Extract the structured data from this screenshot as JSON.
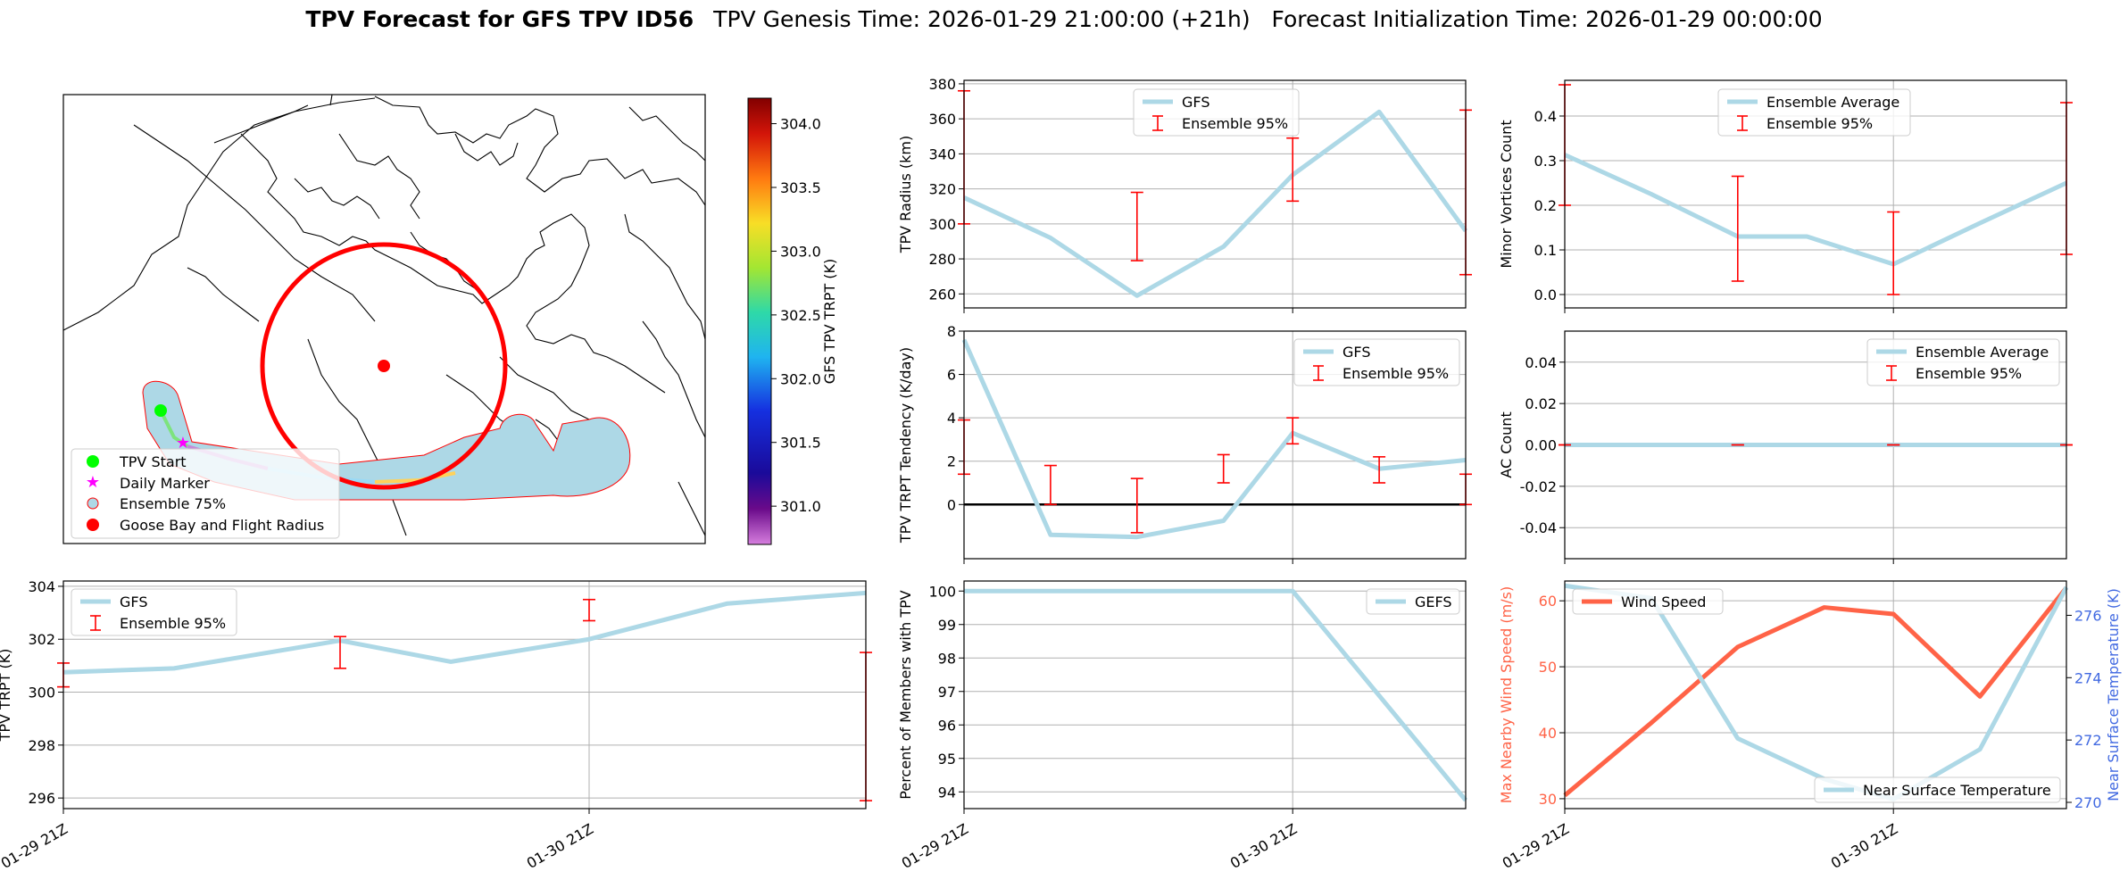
{
  "figure": {
    "title_bold": "TPV Forecast for GFS TPV ID56",
    "title_rest": "TPV Genesis Time: 2026-01-29 21:00:00 (+21h)   Forecast Initialization Time: 2026-01-29 00:00:00"
  },
  "colors": {
    "series": "#add8e6",
    "errorbar": "#ff0000",
    "wind": "#ff6347",
    "temperature_axis": "#4169e1",
    "grid": "#b0b0b0"
  },
  "time_ticks": [
    "01-29 21Z",
    "01-30 21Z"
  ],
  "chart_data": [
    {
      "id": "map",
      "type": "map",
      "colorbar": {
        "label": "GFS TPV TRPT (K)",
        "range": [
          300.7,
          304.2
        ],
        "ticks": [
          "301.0",
          "301.5",
          "302.0",
          "302.5",
          "303.0",
          "303.5",
          "304.0"
        ],
        "colormap": "jet (purple to dark red)"
      },
      "legend": [
        "TPV Start",
        "Daily Marker",
        "Ensemble 75%",
        "Goose Bay and Flight Radius"
      ],
      "legend_position": "lower-left"
    },
    {
      "id": "trpt",
      "type": "line",
      "ylabel": "TPV TRPT (K)",
      "ylim": [
        295.6,
        304.2
      ],
      "yticks": [
        296,
        298,
        300,
        302,
        304
      ],
      "ytick_labels": [
        "296",
        "298",
        "300",
        "302",
        "304"
      ],
      "xlim": [
        0,
        29
      ],
      "x": [
        0,
        4,
        10,
        14,
        19,
        24,
        29
      ],
      "series": [
        {
          "name": "GFS",
          "values": [
            300.75,
            300.9,
            301.95,
            301.15,
            302.0,
            303.35,
            303.75
          ]
        }
      ],
      "errorbars": {
        "name": "Ensemble 95%",
        "x": [
          0,
          10,
          19,
          29
        ],
        "low": [
          300.2,
          300.9,
          302.7,
          295.9
        ],
        "high": [
          301.1,
          302.1,
          303.5,
          301.5
        ]
      },
      "legend_position": "upper-left",
      "xticks": [
        0,
        19
      ]
    },
    {
      "id": "radius",
      "type": "line",
      "ylabel": "TPV Radius (km)",
      "ylim": [
        252,
        382
      ],
      "yticks": [
        260,
        280,
        300,
        320,
        340,
        360,
        380
      ],
      "ytick_labels": [
        "260",
        "280",
        "300",
        "320",
        "340",
        "360",
        "380"
      ],
      "xlim": [
        0,
        29
      ],
      "x": [
        0,
        5,
        10,
        15,
        19,
        24,
        29
      ],
      "series": [
        {
          "name": "GFS",
          "values": [
            315,
            292,
            259,
            287,
            328,
            364,
            296
          ]
        }
      ],
      "errorbars": {
        "name": "Ensemble 95%",
        "x": [
          0,
          10,
          19,
          29
        ],
        "low": [
          300,
          279,
          313,
          271
        ],
        "high": [
          376,
          318,
          349,
          365
        ]
      },
      "legend_position": "upper-center"
    },
    {
      "id": "minor_vortices",
      "type": "line",
      "ylabel": "Minor Vortices Count",
      "ylim": [
        -0.03,
        0.48
      ],
      "yticks": [
        0.0,
        0.1,
        0.2,
        0.3,
        0.4
      ],
      "ytick_labels": [
        "0.0",
        "0.1",
        "0.2",
        "0.3",
        "0.4"
      ],
      "xlim": [
        0,
        29
      ],
      "x": [
        0,
        5,
        10,
        14,
        19,
        24,
        29
      ],
      "series": [
        {
          "name": "Ensemble Average",
          "values": [
            0.313,
            0.225,
            0.13,
            0.13,
            0.068,
            0.16,
            0.25
          ]
        }
      ],
      "errorbars": {
        "name": "Ensemble 95%",
        "x": [
          0,
          10,
          19,
          29
        ],
        "low": [
          0.2,
          0.03,
          0.0,
          0.09
        ],
        "high": [
          0.47,
          0.265,
          0.185,
          0.43
        ]
      },
      "legend_position": "upper-center"
    },
    {
      "id": "tendency",
      "type": "line",
      "ylabel": "TPV TRPT Tendency (K/day)",
      "ylim": [
        -2.5,
        8
      ],
      "yticks": [
        0,
        2,
        4,
        6,
        8
      ],
      "ytick_labels": [
        "0",
        "2",
        "4",
        "6",
        "8"
      ],
      "xlim": [
        0,
        29
      ],
      "x": [
        0,
        5,
        10,
        15,
        19,
        24,
        29
      ],
      "series": [
        {
          "name": "GFS",
          "values": [
            7.6,
            -1.4,
            -1.5,
            -0.75,
            3.3,
            1.65,
            2.05
          ]
        }
      ],
      "zero_line": true,
      "errorbars": {
        "name": "Ensemble 95%",
        "x": [
          0,
          5,
          10,
          15,
          19,
          24,
          29
        ],
        "low": [
          1.4,
          0.0,
          -1.3,
          1.0,
          2.8,
          1.0,
          0.0
        ],
        "high": [
          3.9,
          1.8,
          1.2,
          2.3,
          4.0,
          2.2,
          1.4
        ]
      },
      "legend_position": "upper-right"
    },
    {
      "id": "ac_count",
      "type": "line",
      "ylabel": "AC Count",
      "ylim": [
        -0.055,
        0.055
      ],
      "yticks": [
        -0.04,
        -0.02,
        0.0,
        0.02,
        0.04
      ],
      "ytick_labels": [
        "-0.04",
        "-0.02",
        "0.00",
        "0.02",
        "0.04"
      ],
      "xlim": [
        0,
        29
      ],
      "x": [
        0,
        29
      ],
      "series": [
        {
          "name": "Ensemble Average",
          "values": [
            0,
            0
          ]
        }
      ],
      "errorbars": {
        "name": "Ensemble 95%",
        "x": [
          0,
          10,
          19,
          29
        ],
        "low": [
          0,
          0,
          0,
          0
        ],
        "high": [
          0,
          0,
          0,
          0
        ]
      },
      "legend_position": "upper-right"
    },
    {
      "id": "members",
      "type": "line",
      "ylabel": "Percent of Members with TPV",
      "ylim": [
        93.5,
        100.3
      ],
      "yticks": [
        94,
        95,
        96,
        97,
        98,
        99,
        100
      ],
      "ytick_labels": [
        "94",
        "95",
        "96",
        "97",
        "98",
        "99",
        "100"
      ],
      "xlim": [
        0,
        29
      ],
      "x": [
        0,
        19,
        29
      ],
      "series": [
        {
          "name": "GEFS",
          "values": [
            100,
            100,
            93.75
          ]
        }
      ],
      "legend_position": "upper-right",
      "xticks": [
        0,
        19
      ]
    },
    {
      "id": "wind_temp",
      "type": "line",
      "ylabel": "Max Nearby Wind Speed (m/s)",
      "y2label": "Near Surface Temperature (K)",
      "ylim": [
        28.5,
        63
      ],
      "yticks": [
        30,
        40,
        50,
        60
      ],
      "ytick_labels": [
        "30",
        "40",
        "50",
        "60"
      ],
      "y2lim": [
        269.8,
        277.1
      ],
      "y2ticks": [
        270,
        272,
        274,
        276
      ],
      "y2tick_labels": [
        "270",
        "272",
        "274",
        "276"
      ],
      "xlim": [
        0,
        29
      ],
      "x": [
        0,
        5,
        10,
        15,
        19,
        24,
        29
      ],
      "series": [
        {
          "name": "Wind Speed",
          "axis": "left",
          "values": [
            30.5,
            41.5,
            53,
            59,
            58,
            45.5,
            62
          ]
        },
        {
          "name": "Near Surface Temperature",
          "axis": "right",
          "values": [
            276.95,
            276.55,
            272.05,
            270.75,
            270.1,
            271.7,
            276.9
          ]
        }
      ],
      "legend_positions": [
        "upper-left",
        "lower-right"
      ],
      "xticks": [
        0,
        19
      ]
    }
  ]
}
